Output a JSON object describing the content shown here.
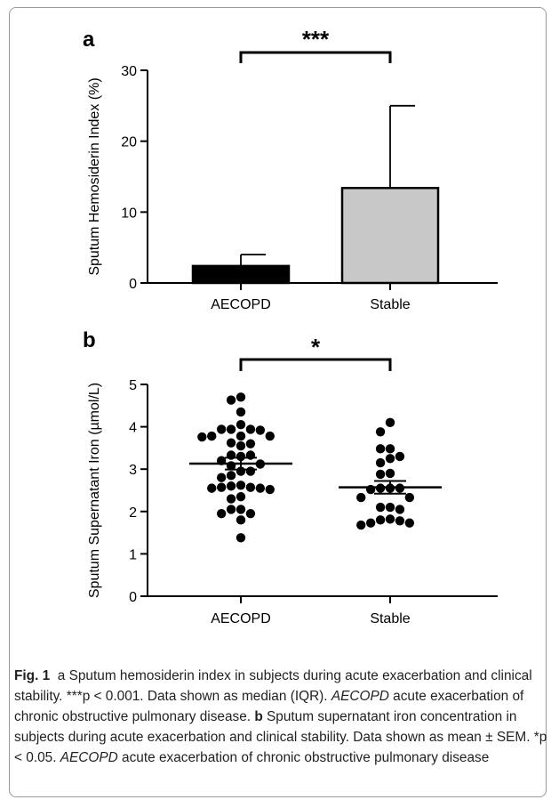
{
  "chart_data": [
    {
      "type": "bar",
      "panel": "a",
      "categories": [
        "AECOPD",
        "Stable"
      ],
      "values": [
        2.4,
        13.4
      ],
      "error_upper": [
        4.0,
        25.0
      ],
      "colors": [
        "#000000",
        "#c8c8c8"
      ],
      "ylabel": "Sputum Hemosiderin Index (%)",
      "ylim": [
        0,
        30
      ],
      "yticks": [
        0,
        10,
        20,
        30
      ],
      "significance": "***",
      "grid": false
    },
    {
      "type": "scatter",
      "panel": "b",
      "categories": [
        "AECOPD",
        "Stable"
      ],
      "series": [
        {
          "category": "AECOPD",
          "mean": 3.13,
          "sem": 0.14,
          "values": [
            4.7,
            4.63,
            4.35,
            4.05,
            3.94,
            3.94,
            3.94,
            3.92,
            3.78,
            3.78,
            3.78,
            3.76,
            3.62,
            3.6,
            3.55,
            3.33,
            3.33,
            3.3,
            3.2,
            3.12,
            3.08,
            2.95,
            2.95,
            2.85,
            2.8,
            2.62,
            2.6,
            2.57,
            2.57,
            2.55,
            2.55,
            2.52,
            2.35,
            2.3,
            2.05,
            2.05,
            1.95,
            1.95,
            1.8,
            1.38
          ]
        },
        {
          "category": "Stable",
          "mean": 2.57,
          "sem": 0.15,
          "values": [
            4.1,
            3.88,
            3.48,
            3.48,
            3.3,
            3.25,
            3.15,
            2.9,
            2.88,
            2.55,
            2.55,
            2.55,
            2.52,
            2.33,
            2.33,
            2.1,
            2.1,
            2.05,
            1.82,
            1.8,
            1.78,
            1.73,
            1.73,
            1.68
          ]
        }
      ],
      "ylabel": "Sputum Supernatant Iron (µmol/L)",
      "ylim": [
        0,
        5
      ],
      "yticks": [
        0,
        1,
        2,
        3,
        4,
        5
      ],
      "significance": "*",
      "grid": false
    }
  ],
  "caption": {
    "fig_label": "Fig. 1",
    "part1": "a Sputum hemosiderin index in subjects during acute exacerbation and clinical stability. ***p < 0.001. Data shown as median (IQR). ",
    "abbr1": "AECOPD",
    "part2": " acute exacerbation of chronic obstructive pulmonary disease. ",
    "b_label": "b",
    "part3": " Sputum supernatant iron concentration in subjects during acute exacerbation and clinical stability. Data shown as mean ± SEM. *p < 0.05. ",
    "abbr2": "AECOPD",
    "part4": " acute exacerbation of chronic obstructive pulmonary disease"
  }
}
